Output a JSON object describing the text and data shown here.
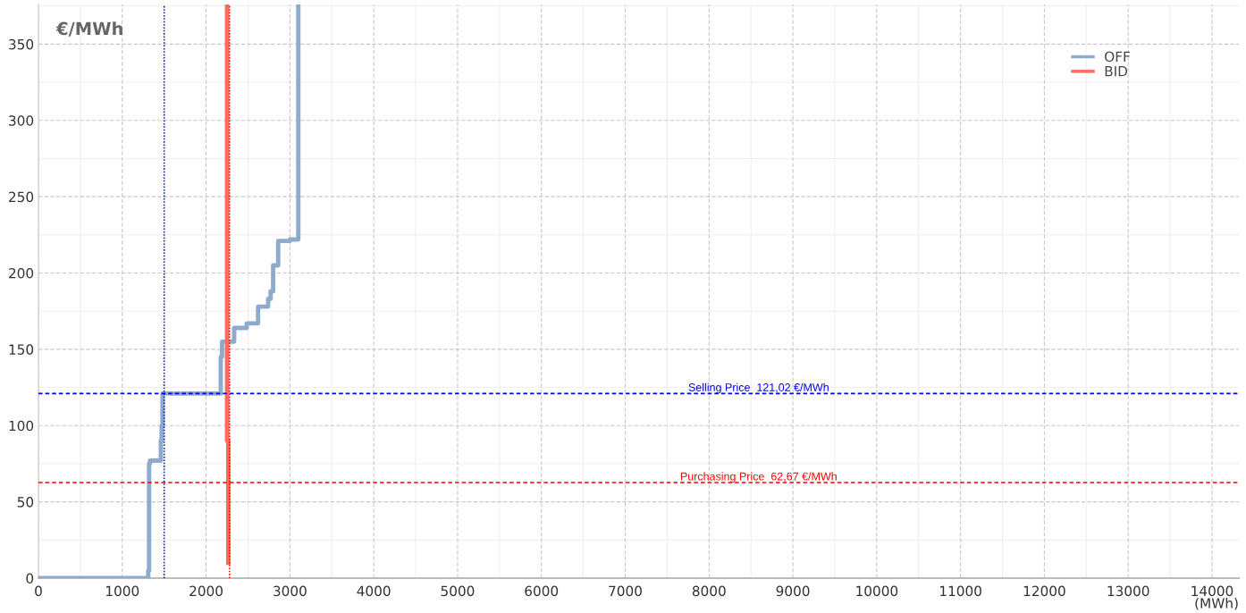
{
  "chart_data": {
    "type": "step",
    "ylabel": "€/MWh",
    "xlabel": "(MWh)",
    "xlim": [
      0,
      14320
    ],
    "ylim": [
      0,
      376
    ],
    "xticks": [
      0,
      1000,
      2000,
      3000,
      4000,
      5000,
      6000,
      7000,
      8000,
      9000,
      10000,
      11000,
      12000,
      13000,
      14000
    ],
    "yticks": [
      0,
      50,
      100,
      150,
      200,
      250,
      300,
      350
    ],
    "grid": true,
    "legend": "top right",
    "series": [
      {
        "name": "OFF",
        "color": "#8eaacc",
        "x": [
          0,
          1310,
          1320,
          1330,
          1360,
          1460,
          1470,
          1480,
          2175,
          2190,
          2335,
          2485,
          2620,
          2740,
          2770,
          2800,
          2860,
          3000,
          3100
        ],
        "values": [
          0,
          5,
          75,
          77,
          77,
          90,
          100,
          121,
          145,
          155,
          164,
          167,
          178,
          183,
          188,
          205,
          221,
          222,
          376
        ]
      },
      {
        "name": "BID",
        "type": "line",
        "color": "#ff6a5a",
        "x": [
          2250,
          2250,
          2265,
          2265
        ],
        "values": [
          376,
          90,
          90,
          10
        ]
      }
    ],
    "ref_lines": [
      {
        "axis": "y",
        "value": 121.02,
        "label": "Selling Price  121,02 €/MWh",
        "color": "#0000ff",
        "line_style": "dashed"
      },
      {
        "axis": "y",
        "value": 62.67,
        "label": "Purchasing Price  62,67 €/MWh",
        "color": "#ff0000",
        "line_style": "dashed"
      },
      {
        "axis": "x",
        "value": 1500,
        "label": null,
        "color": "#0000ff",
        "line_style": "dotted"
      },
      {
        "axis": "x",
        "value": 2280,
        "label": null,
        "color": "#ff0000",
        "line_style": "dotted"
      }
    ]
  }
}
